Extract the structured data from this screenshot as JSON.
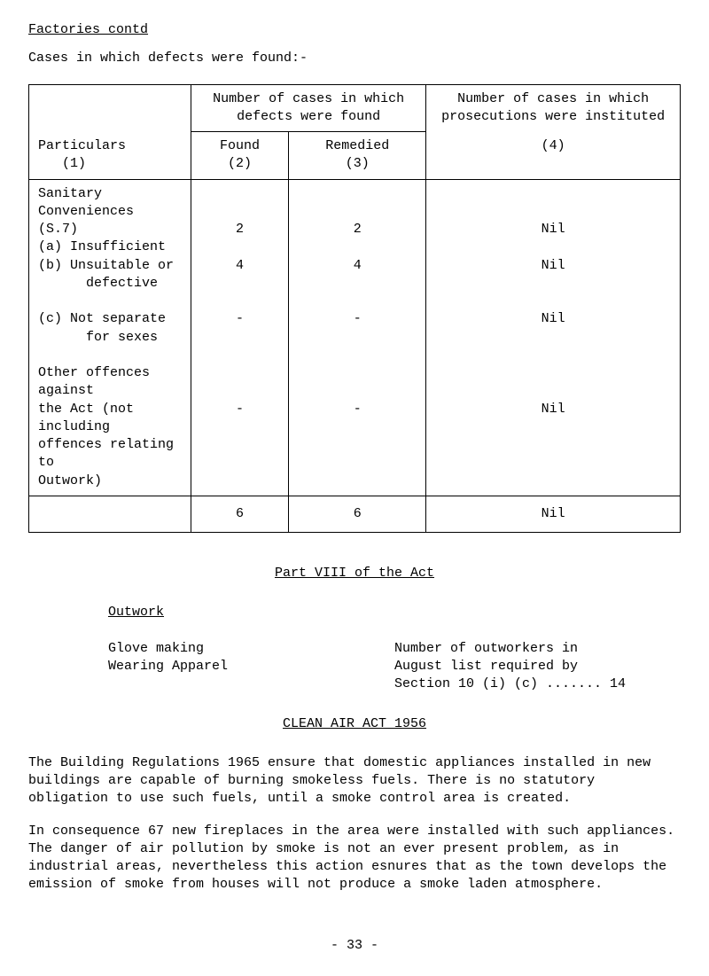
{
  "header": {
    "title": "Factories contd",
    "subtitle": "Cases in which defects were found:-"
  },
  "table": {
    "head": {
      "cases_found": "Number of cases in which defects were found",
      "prosecutions": "Number of cases in which prosecutions were instituted",
      "particulars": "Particulars",
      "col1": "(1)",
      "found": "Found",
      "col2": "(2)",
      "remedied": "Remedied",
      "col3": "(3)",
      "col4": "(4)"
    },
    "rows": {
      "sanitary": "Sanitary Conveniences",
      "s7": "(S.7)",
      "a_label": "(a) Insufficient",
      "a_found": "2",
      "a_remedied": "2",
      "a_pros": "Nil",
      "b_label": "(b) Unsuitable or",
      "b_label2": "defective",
      "b_found": "4",
      "b_remedied": "4",
      "b_pros": "Nil",
      "c_label": "(c) Not separate",
      "c_label2": "for sexes",
      "c_found": "-",
      "c_remedied": "-",
      "c_pros": "Nil",
      "other1": "Other offences against",
      "other2": "the Act (not including",
      "other3": "offences relating to",
      "other4": "Outwork)",
      "other_found": "-",
      "other_remedied": "-",
      "other_pros": "Nil",
      "total_found": "6",
      "total_remedied": "6",
      "total_pros": "Nil"
    }
  },
  "partviii": {
    "heading": "Part VIII of the Act",
    "outwork": "Outwork",
    "left1": "Glove making",
    "left2": "Wearing Apparel",
    "right1": "Number of outworkers in",
    "right2": "August list required by",
    "right3": "Section 10 (i) (c) ....... 14"
  },
  "cleanair": {
    "heading": "CLEAN AIR ACT 1956",
    "para1": "The Building Regulations 1965 ensure that domestic appliances installed in new buildings are capable of burning smokeless fuels.  There is no statutory obligation to use such fuels, until a smoke control area is created.",
    "para2": "In consequence 67 new fireplaces in the area were installed with such appliances. The danger of air pollution by smoke is not an ever present problem, as in industrial areas, nevertheless this action esnures that as the town develops the emission of smoke from houses will not produce a smoke laden atmosphere."
  },
  "pagenum": "- 33 -"
}
